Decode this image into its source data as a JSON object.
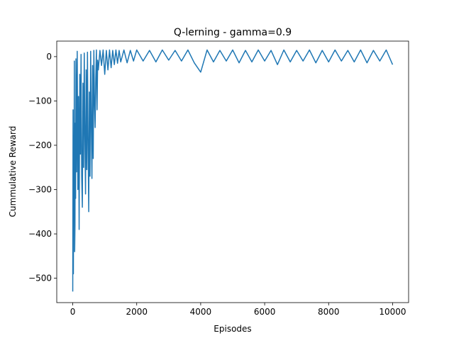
{
  "chart_data": {
    "type": "line",
    "title": "Q-lerning - gamma=0.9",
    "xlabel": "Episodes",
    "ylabel": "Cummulative Reward",
    "xlim": [
      -500,
      10500
    ],
    "ylim": [
      -555,
      35
    ],
    "xticks": [
      0,
      2000,
      4000,
      6000,
      8000,
      10000
    ],
    "xtick_labels": [
      "0",
      "2000",
      "4000",
      "6000",
      "8000",
      "10000"
    ],
    "yticks": [
      0,
      -100,
      -200,
      -300,
      -400,
      -500
    ],
    "ytick_labels": [
      "0",
      "−100",
      "−200",
      "−300",
      "−400",
      "−500"
    ],
    "grid": false,
    "legend": "none",
    "color": "#1f77b4",
    "series": [
      {
        "x": [
          0,
          10,
          20,
          30,
          40,
          50,
          60,
          70,
          80,
          90,
          100,
          120,
          140,
          160,
          180,
          200,
          220,
          240,
          260,
          280,
          300,
          320,
          340,
          360,
          380,
          400,
          420,
          440,
          460,
          480,
          500,
          520,
          540,
          560,
          580,
          600,
          620,
          640,
          660,
          680,
          700,
          720,
          740,
          760,
          780,
          800,
          850,
          900,
          950,
          1000,
          1050,
          1100,
          1150,
          1200,
          1250,
          1300,
          1350,
          1400,
          1450,
          1500,
          1600,
          1700,
          1800,
          1900,
          2000,
          2200,
          2400,
          2600,
          2800,
          3000,
          3200,
          3400,
          3600,
          3800,
          4000,
          4200,
          4400,
          4600,
          4800,
          5000,
          5200,
          5400,
          5600,
          5800,
          6000,
          6200,
          6400,
          6600,
          6800,
          7000,
          7200,
          7400,
          7600,
          7800,
          8000,
          8200,
          8400,
          8600,
          8800,
          9000,
          9200,
          9400,
          9600,
          9800,
          10000
        ],
        "y": [
          -530,
          -120,
          -490,
          -235,
          -350,
          -10,
          -440,
          -380,
          -150,
          -320,
          -5,
          -260,
          12,
          -300,
          -90,
          -390,
          -40,
          -220,
          5,
          -270,
          -340,
          -60,
          -250,
          8,
          -180,
          -310,
          -30,
          -255,
          10,
          -200,
          -350,
          -80,
          -270,
          12,
          -150,
          -275,
          -20,
          -230,
          14,
          -100,
          -160,
          -50,
          15,
          -120,
          -8,
          -30,
          14,
          -20,
          15,
          -40,
          14,
          -30,
          15,
          -25,
          14,
          -18,
          15,
          -15,
          14,
          -12,
          15,
          -14,
          14,
          -10,
          15,
          -10,
          14,
          -12,
          15,
          -8,
          14,
          -10,
          15,
          -14,
          -35,
          15,
          -12,
          14,
          -10,
          15,
          -14,
          14,
          -12,
          15,
          -10,
          14,
          -18,
          15,
          -12,
          14,
          -10,
          15,
          -14,
          14,
          -12,
          15,
          -10,
          14,
          -12,
          15,
          -14,
          14,
          -10,
          15,
          -18
        ]
      }
    ]
  }
}
